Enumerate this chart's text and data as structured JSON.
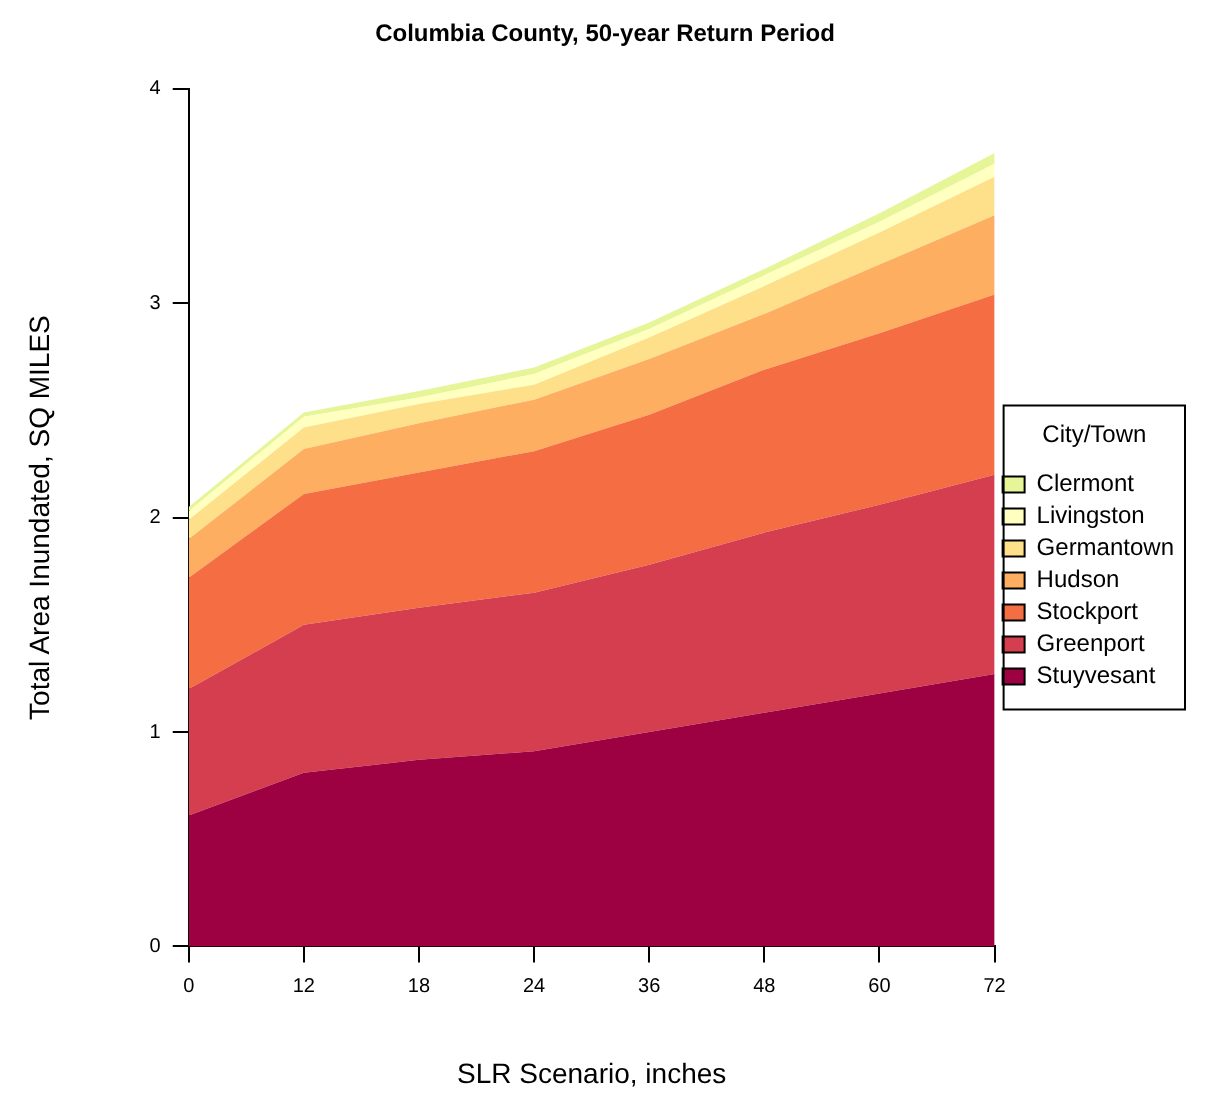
{
  "chart_data": {
    "type": "area",
    "title": "Columbia County, 50-year Return Period",
    "xlabel": "SLR Scenario, inches",
    "ylabel": "Total Area Inundated, SQ MILES",
    "legend_title": "City/Town",
    "categories": [
      "0",
      "12",
      "18",
      "24",
      "36",
      "48",
      "60",
      "72"
    ],
    "stacked": true,
    "ylim": [
      0,
      4
    ],
    "yticks": [
      0,
      1,
      2,
      3,
      4
    ],
    "grid": false,
    "legend": "right",
    "marker": "none",
    "series": [
      {
        "name": "Stuyvesant",
        "color": "#9e0142",
        "values": [
          0.61,
          0.81,
          0.87,
          0.91,
          1.0,
          1.09,
          1.18,
          1.27
        ]
      },
      {
        "name": "Greenport",
        "color": "#d53e4f",
        "values": [
          0.59,
          0.69,
          0.71,
          0.74,
          0.78,
          0.84,
          0.88,
          0.93
        ]
      },
      {
        "name": "Stockport",
        "color": "#f46d43",
        "values": [
          0.52,
          0.61,
          0.63,
          0.66,
          0.7,
          0.76,
          0.8,
          0.84
        ]
      },
      {
        "name": "Hudson",
        "color": "#fdae61",
        "values": [
          0.18,
          0.21,
          0.23,
          0.24,
          0.26,
          0.26,
          0.32,
          0.37
        ]
      },
      {
        "name": "Germantown",
        "color": "#fee08b",
        "values": [
          0.09,
          0.1,
          0.09,
          0.07,
          0.1,
          0.13,
          0.15,
          0.18
        ]
      },
      {
        "name": "Livingston",
        "color": "#ffffbf",
        "values": [
          0.04,
          0.05,
          0.03,
          0.05,
          0.04,
          0.05,
          0.05,
          0.06
        ]
      },
      {
        "name": "Clermont",
        "color": "#e6f598",
        "values": [
          0.02,
          0.02,
          0.03,
          0.03,
          0.03,
          0.03,
          0.04,
          0.05
        ]
      }
    ]
  }
}
